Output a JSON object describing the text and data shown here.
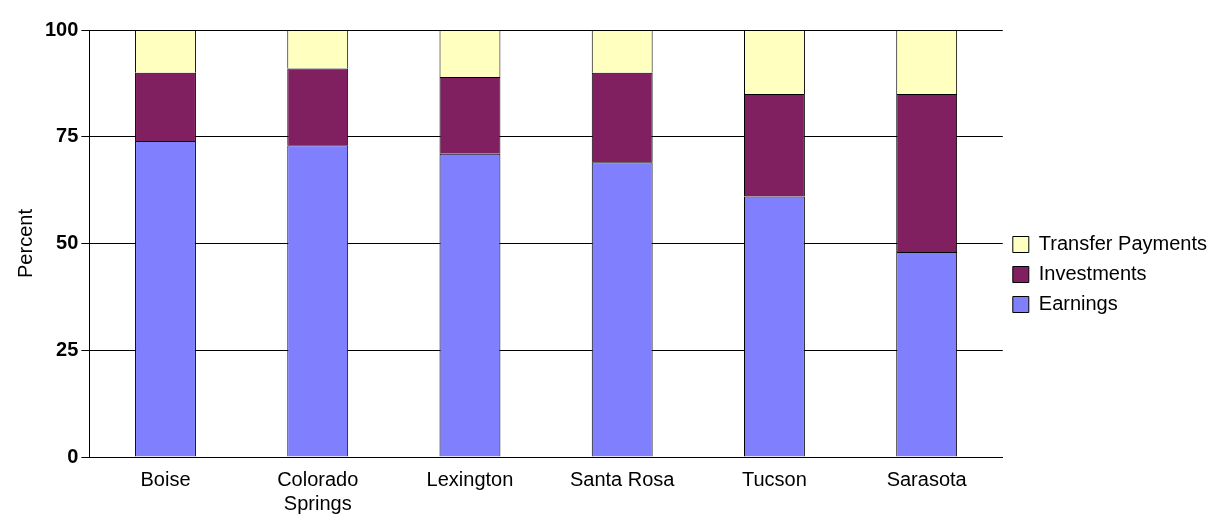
{
  "chart_data": {
    "type": "bar",
    "stacked": true,
    "ylabel": "Percent",
    "categories": [
      "Boise",
      "Colorado Springs",
      "Lexington",
      "Santa Rosa",
      "Tucson",
      "Sarasota"
    ],
    "series": [
      {
        "name": "Earnings",
        "color": "#8080ff",
        "values": [
          74,
          73,
          71,
          69,
          61,
          48
        ]
      },
      {
        "name": "Investments",
        "color": "#802060",
        "values": [
          16,
          18,
          18,
          21,
          24,
          37
        ]
      },
      {
        "name": "Transfer Payments",
        "color": "#ffffc0",
        "values": [
          10,
          9,
          11,
          10,
          15,
          15
        ]
      }
    ],
    "ylim": [
      0,
      100
    ],
    "yticks": [
      0,
      25,
      50,
      75,
      100
    ],
    "grid": "y",
    "legend": "right"
  }
}
